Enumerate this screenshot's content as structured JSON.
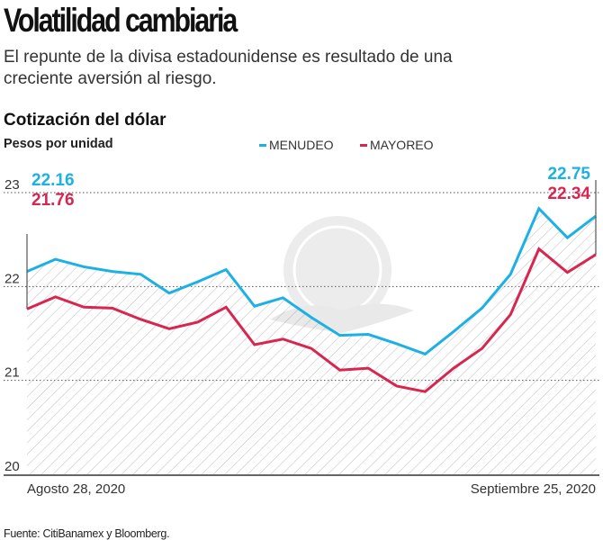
{
  "header": {
    "title": "Volatilidad cambiaria",
    "subtitle": "El repunte de la divisa estadounidense es resultado de una creciente aversión al riesgo."
  },
  "chart_data": {
    "type": "line",
    "title": "Cotización del dólar",
    "ylabel": "Pesos por unidad",
    "ylim": [
      20,
      23
    ],
    "yticks": [
      "20",
      "21",
      "22",
      "23"
    ],
    "grid": true,
    "area_fill": "hatched under MENUDEO",
    "legend": "top-right",
    "x_labels": [
      "Agosto 28, 2020",
      "Septiembre 25, 2020"
    ],
    "series": [
      {
        "name": "MENUDEO",
        "color": "#1db0e4",
        "values": [
          22.16,
          22.29,
          22.21,
          22.16,
          22.13,
          21.93,
          22.05,
          22.18,
          21.79,
          21.88,
          21.67,
          21.48,
          21.49,
          21.39,
          21.28,
          21.52,
          21.77,
          22.13,
          22.83,
          22.52,
          22.75
        ],
        "start_label": "22.16",
        "end_label": "22.75"
      },
      {
        "name": "MAYOREO",
        "color": "#d7264f",
        "values": [
          21.76,
          21.89,
          21.78,
          21.77,
          21.65,
          21.55,
          21.62,
          21.78,
          21.38,
          21.44,
          21.34,
          21.11,
          21.13,
          20.94,
          20.88,
          21.13,
          21.34,
          21.7,
          22.4,
          22.15,
          22.34
        ],
        "start_label": "21.76",
        "end_label": "22.34"
      }
    ]
  },
  "footer": {
    "source": "Fuente: CitiBanamex y Bloomberg."
  }
}
